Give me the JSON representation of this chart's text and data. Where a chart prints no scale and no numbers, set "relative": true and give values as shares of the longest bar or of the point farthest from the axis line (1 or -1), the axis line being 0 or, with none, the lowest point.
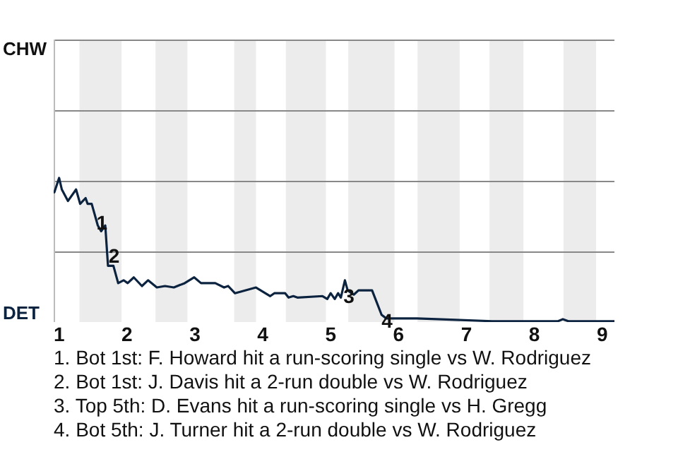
{
  "chart_data": {
    "type": "line",
    "relative": true,
    "legend": false,
    "marker": "none",
    "line_style": "solid",
    "xlim": [
      0.92,
      9.18
    ],
    "xticks": [
      1,
      2,
      3,
      4,
      5,
      6,
      7,
      8,
      9
    ],
    "ref_lines": [
      {
        "axis": "y",
        "value": 0.49,
        "color": "#888888"
      },
      {
        "axis": "y",
        "value": 0.98,
        "color": "#888888"
      },
      {
        "axis": "y",
        "value": 1.47,
        "color": "#888888"
      },
      {
        "axis": "y",
        "value": 1.96,
        "color": "#888888"
      }
    ],
    "bands": [
      {
        "axis": "x",
        "from": 1.3,
        "to": 1.92,
        "color": "#ececec"
      },
      {
        "axis": "x",
        "from": 2.42,
        "to": 2.89,
        "color": "#ececec"
      },
      {
        "axis": "x",
        "from": 3.58,
        "to": 3.9,
        "color": "#ececec"
      },
      {
        "axis": "x",
        "from": 4.34,
        "to": 4.93,
        "color": "#ececec"
      },
      {
        "axis": "x",
        "from": 5.26,
        "to": 5.94,
        "color": "#ececec"
      },
      {
        "axis": "x",
        "from": 6.28,
        "to": 6.9,
        "color": "#ececec"
      },
      {
        "axis": "x",
        "from": 7.34,
        "to": 7.84,
        "color": "#ececec"
      },
      {
        "axis": "x",
        "from": 8.43,
        "to": 8.91,
        "color": "#ececec"
      }
    ],
    "x": [
      0.93,
      1.0,
      1.04,
      1.13,
      1.25,
      1.31,
      1.39,
      1.42,
      1.48,
      1.57,
      1.62,
      1.68,
      1.72,
      1.8,
      1.87,
      1.95,
      2.01,
      2.1,
      2.22,
      2.31,
      2.44,
      2.56,
      2.69,
      2.85,
      2.99,
      3.09,
      3.3,
      3.43,
      3.49,
      3.59,
      3.9,
      4.11,
      4.17,
      4.33,
      4.38,
      4.45,
      4.51,
      4.88,
      4.95,
      5.0,
      5.06,
      5.11,
      5.15,
      5.21,
      5.25,
      5.34,
      5.41,
      5.61,
      5.75,
      5.82,
      6.27,
      6.56,
      7.38,
      8.35,
      8.42,
      8.5,
      9.18
    ],
    "series": [
      {
        "color": "#0c2340",
        "values": [
          0.9,
          1,
          0.92,
          0.84,
          0.92,
          0.82,
          0.86,
          0.82,
          0.82,
          0.67,
          0.63,
          0.67,
          0.39,
          0.39,
          0.27,
          0.29,
          0.27,
          0.31,
          0.25,
          0.29,
          0.24,
          0.25,
          0.24,
          0.27,
          0.31,
          0.27,
          0.27,
          0.24,
          0.25,
          0.2,
          0.24,
          0.18,
          0.2,
          0.2,
          0.17,
          0.18,
          0.17,
          0.18,
          0.16,
          0.2,
          0.16,
          0.2,
          0.17,
          0.29,
          0.22,
          0.19,
          0.22,
          0.22,
          0.05,
          0.025,
          0.025,
          0.02,
          0.006,
          0.006,
          0.02,
          0.006,
          0.006
        ]
      }
    ],
    "annotations": [
      "CHW",
      "DET",
      {
        "text": "1",
        "x": 1.63,
        "y": 0.68
      },
      {
        "text": "2",
        "x": 1.81,
        "y": 0.45
      },
      {
        "text": "3",
        "x": 5.27,
        "y": 0.17
      },
      {
        "text": "4",
        "x": 5.83,
        "y": 0
      },
      "1. Bot 1st: F. Howard hit a run-scoring single vs W. Rodriguez",
      "2. Bot 1st: J. Davis hit a 2-run double vs W. Rodriguez",
      "3. Top 5th: D. Evans hit a run-scoring single vs H. Gregg",
      "4. Bot 5th: J. Turner hit a 2-run double vs W. Rodriguez"
    ]
  }
}
